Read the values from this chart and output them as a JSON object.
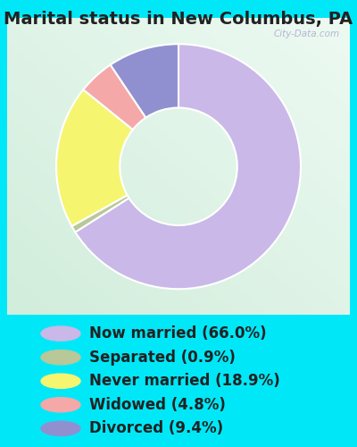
{
  "title": "Marital status in New Columbus, PA",
  "slices": [
    66.0,
    0.9,
    18.9,
    4.8,
    9.4
  ],
  "labels": [
    "Now married (66.0%)",
    "Separated (0.9%)",
    "Never married (18.9%)",
    "Widowed (4.8%)",
    "Divorced (9.4%)"
  ],
  "colors": [
    "#c9b8e8",
    "#b8c898",
    "#f5f570",
    "#f5a8a8",
    "#9090d0"
  ],
  "chart_bg_colors": [
    "#e8f8f0",
    "#d0ece0"
  ],
  "outer_bg": "#00e8f8",
  "title_fontsize": 14,
  "legend_fontsize": 12,
  "watermark": "City-Data.com",
  "donut_width": 0.52,
  "startangle": 90
}
